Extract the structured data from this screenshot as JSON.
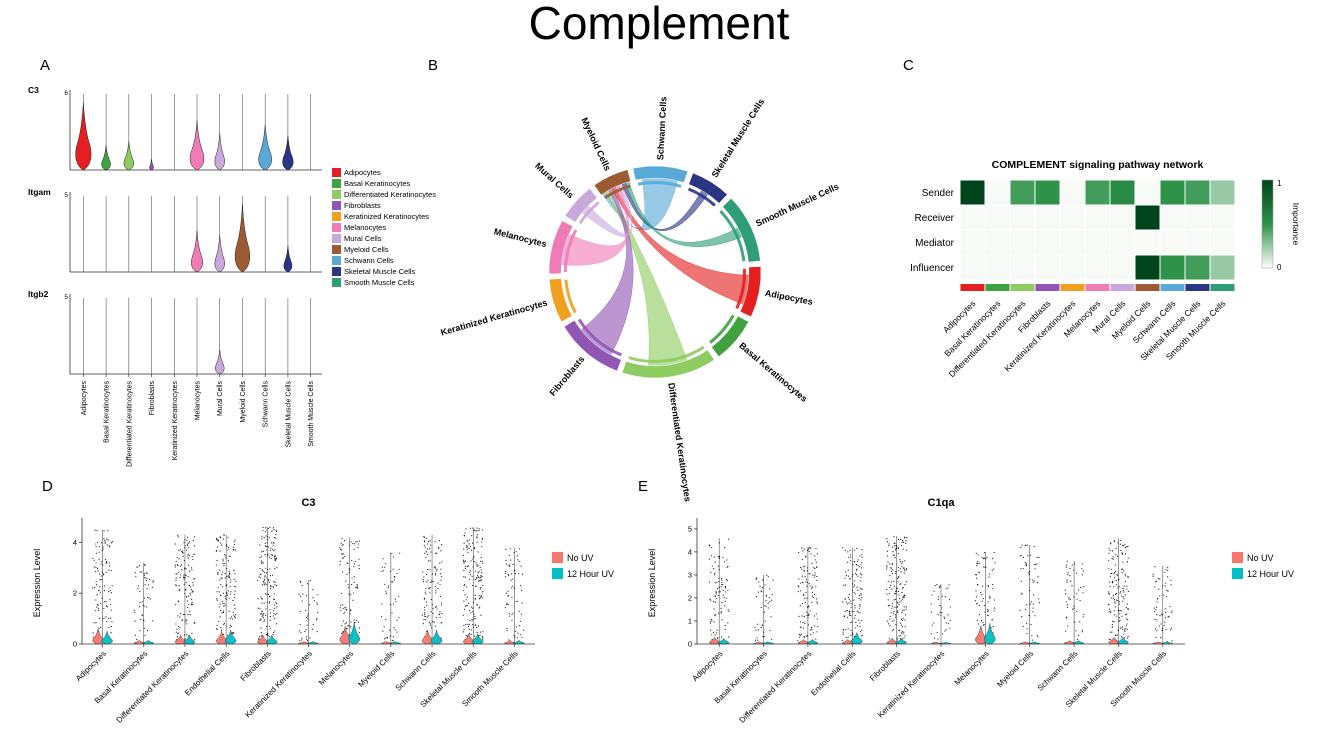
{
  "title": "Complement",
  "panels": {
    "a": "A",
    "b": "B",
    "c": "C",
    "d": "D",
    "e": "E"
  },
  "colors": {
    "no_uv": "#F8766D",
    "uv_12h": "#00BFC4",
    "heat_low": "#F7FAF7",
    "heat_mid": "#2E9248",
    "heat_high": "#00441B"
  },
  "cell_types": [
    {
      "name": "Adipocytes",
      "color": "#E3201F"
    },
    {
      "name": "Basal Keratinocytes",
      "color": "#3FA13F"
    },
    {
      "name": "Differentiated Keratinocytes",
      "color": "#8ECB61"
    },
    {
      "name": "Fibroblasts",
      "color": "#9156B5"
    },
    {
      "name": "Keratinized Keratinocytes",
      "color": "#F0A01F"
    },
    {
      "name": "Melanocytes",
      "color": "#F07CB6"
    },
    {
      "name": "Mural Cells",
      "color": "#C9A9DC"
    },
    {
      "name": "Myeloid Cells",
      "color": "#9C5B33"
    },
    {
      "name": "Schwann Cells",
      "color": "#58A8D8"
    },
    {
      "name": "Skeletal Muscle Cells",
      "color": "#2A3585"
    },
    {
      "name": "Smooth Muscle Cells",
      "color": "#2F9E77"
    }
  ],
  "chart_data": [
    {
      "panel": "A",
      "type": "violin",
      "description": "Stacked violin plots of complement genes by cell type",
      "categories": [
        "Adipocytes",
        "Basal Keratinocytes",
        "Differentiated Keratinocytes",
        "Fibroblasts",
        "Keratinized Keratinocytes",
        "Melanocytes",
        "Mural Cells",
        "Myeloid Cells",
        "Schwann Cells",
        "Skeletal Muscle Cells",
        "Smooth Muscle Cells"
      ],
      "genes": [
        {
          "name": "C3",
          "ymax": 6,
          "heights": [
            0.82,
            0.3,
            0.35,
            0.13,
            0.1,
            0.6,
            0.45,
            0.1,
            0.55,
            0.42,
            0.1
          ],
          "widths": [
            0.95,
            0.55,
            0.6,
            0.25,
            0.2,
            0.85,
            0.6,
            0.2,
            0.8,
            0.65,
            0.2
          ]
        },
        {
          "name": "Itgam",
          "ymax": 5,
          "heights": [
            0.1,
            0.1,
            0.1,
            0.1,
            0.1,
            0.5,
            0.45,
            0.82,
            0.1,
            0.32,
            0.1
          ],
          "widths": [
            0.2,
            0.2,
            0.2,
            0.2,
            0.2,
            0.7,
            0.6,
            0.9,
            0.2,
            0.5,
            0.2
          ]
        },
        {
          "name": "Itgb2",
          "ymax": 5,
          "heights": [
            0.08,
            0.08,
            0.08,
            0.08,
            0.08,
            0.1,
            0.3,
            0.08,
            0.08,
            0.08,
            0.08
          ],
          "widths": [
            0.15,
            0.15,
            0.15,
            0.15,
            0.15,
            0.2,
            0.55,
            0.15,
            0.15,
            0.15,
            0.15
          ]
        }
      ]
    },
    {
      "panel": "B",
      "type": "chord",
      "description": "Chord diagram of COMPLEMENT signaling between cell types",
      "start_angle": -12,
      "gap": 3,
      "segments": [
        {
          "name": "Schwann Cells",
          "span": 30
        },
        {
          "name": "Skeletal Muscle Cells",
          "span": 22
        },
        {
          "name": "Smooth Muscle Cells",
          "span": 38
        },
        {
          "name": "Adipocytes",
          "span": 28
        },
        {
          "name": "Basal Keratinocytes",
          "span": 25
        },
        {
          "name": "Differentiated Keratinocytes",
          "span": 52
        },
        {
          "name": "Fibroblasts",
          "span": 38
        },
        {
          "name": "Keratinized Keratinocytes",
          "span": 24
        },
        {
          "name": "Melanocytes",
          "span": 30
        },
        {
          "name": "Mural Cells",
          "span": 20
        },
        {
          "name": "Myeloid Cells",
          "span": 20
        }
      ],
      "links": [
        {
          "source": "Differentiated Keratinocytes",
          "target": "Myeloid Cells",
          "weight": 0.85
        },
        {
          "source": "Fibroblasts",
          "target": "Myeloid Cells",
          "weight": 0.85
        },
        {
          "source": "Schwann Cells",
          "target": "Myeloid Cells",
          "weight": 0.9
        },
        {
          "source": "Adipocytes",
          "target": "Myeloid Cells",
          "weight": 0.8
        },
        {
          "source": "Melanocytes",
          "target": "Myeloid Cells",
          "weight": 0.8
        },
        {
          "source": "Mural Cells",
          "target": "Myeloid Cells",
          "weight": 0.35
        },
        {
          "source": "Smooth Muscle Cells",
          "target": "Myeloid Cells",
          "weight": 0.2
        },
        {
          "source": "Skeletal Muscle Cells",
          "target": "Myeloid Cells",
          "weight": 0.25
        }
      ]
    },
    {
      "panel": "C",
      "type": "heatmap",
      "title": "COMPLEMENT signaling pathway network",
      "rows": [
        "Sender",
        "Receiver",
        "Mediator",
        "Influencer"
      ],
      "columns": [
        "Adipocytes",
        "Basal Keratinocytes",
        "Differentiated Keratinocytes",
        "Fibroblasts",
        "Keratinized Keratinocytes",
        "Melanocytes",
        "Mural Cells",
        "Myeloid Cells",
        "Schwann Cells",
        "Skeletal Muscle Cells",
        "Smooth Muscle Cells"
      ],
      "values": [
        [
          1.0,
          0,
          0.45,
          0.5,
          0,
          0.45,
          0.55,
          0,
          0.5,
          0.45,
          0.25
        ],
        [
          0,
          0,
          0,
          0,
          0,
          0,
          0,
          1.0,
          0,
          0,
          0
        ],
        [
          0,
          0,
          0,
          0,
          0,
          0,
          0,
          0,
          0,
          0,
          0
        ],
        [
          0,
          0,
          0,
          0,
          0,
          0,
          0,
          1.0,
          0.5,
          0.45,
          0.25
        ]
      ],
      "colorbar": {
        "label": "Importance",
        "min": 0,
        "max": 1
      }
    },
    {
      "panel": "D",
      "type": "split-violin",
      "title": "C3",
      "ylabel": "Expression Level",
      "ymax": 4.8,
      "yticks": [
        0,
        2,
        4
      ],
      "groups": [
        {
          "name": "No UV"
        },
        {
          "name": "12 Hour UV"
        }
      ],
      "categories": [
        "Adipocytes",
        "Basal Keratinocytes",
        "Differentiated Keratinocytes",
        "Endothelial Cells",
        "Fibroblasts",
        "Keratinized Keratinocytes",
        "Melanocytes",
        "Myeloid Cells",
        "Schwann Cells",
        "Skeletal Muscle Cells",
        "Smooth Muscle Cells"
      ],
      "points_max": [
        4.5,
        3.2,
        4.3,
        4.3,
        4.6,
        2.5,
        4.2,
        3.6,
        4.3,
        4.6,
        3.8
      ],
      "density": [
        0.55,
        0.15,
        0.75,
        0.75,
        1.0,
        0.08,
        0.45,
        0.12,
        0.6,
        0.95,
        0.25
      ],
      "violin_no_uv": [
        0.6,
        0.15,
        0.35,
        0.5,
        0.35,
        0.1,
        0.7,
        0.1,
        0.55,
        0.4,
        0.15
      ],
      "violin_12h_uv": [
        0.5,
        0.15,
        0.35,
        0.55,
        0.35,
        0.1,
        0.85,
        0.1,
        0.55,
        0.4,
        0.15
      ]
    },
    {
      "panel": "E",
      "type": "split-violin",
      "title": "C1qa",
      "ylabel": "Expression Level",
      "ymax": 5.3,
      "yticks": [
        0,
        1,
        2,
        3,
        4,
        5
      ],
      "groups": [
        {
          "name": "No UV"
        },
        {
          "name": "12 Hour UV"
        }
      ],
      "categories": [
        "Adipocytes",
        "Basal Keratinocytes",
        "Differentiated Keratinocytes",
        "Endothelial Cells",
        "Fibroblasts",
        "Keratinized Keratinocytes",
        "Melanocytes",
        "Myeloid Cells",
        "Schwann Cells",
        "Skeletal Muscle Cells",
        "Smooth Muscle Cells"
      ],
      "points_max": [
        4.6,
        3.0,
        4.2,
        4.2,
        4.7,
        2.6,
        4.0,
        4.3,
        3.6,
        4.6,
        3.4
      ],
      "density": [
        0.45,
        0.12,
        0.6,
        0.7,
        1.0,
        0.07,
        0.35,
        0.2,
        0.15,
        0.85,
        0.2
      ],
      "violin_no_uv": [
        0.3,
        0.1,
        0.2,
        0.2,
        0.25,
        0.08,
        0.8,
        0.1,
        0.15,
        0.3,
        0.1
      ],
      "violin_12h_uv": [
        0.25,
        0.1,
        0.2,
        0.5,
        0.25,
        0.08,
        0.9,
        0.1,
        0.15,
        0.3,
        0.1
      ]
    }
  ]
}
